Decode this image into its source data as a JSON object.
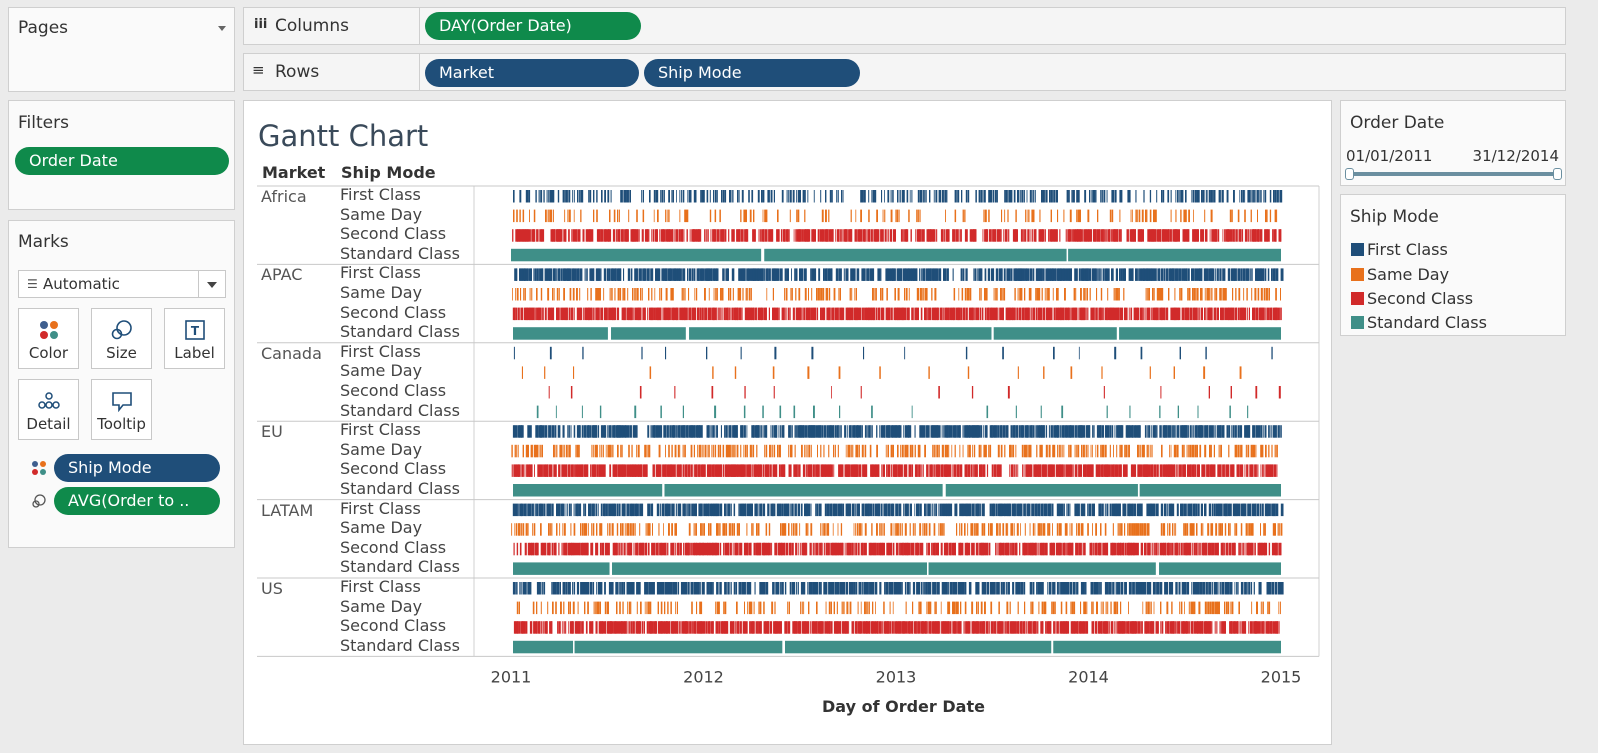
{
  "pages": {
    "title": "Pages"
  },
  "filters": {
    "title": "Filters",
    "pill": "Order Date"
  },
  "marks": {
    "title": "Marks",
    "type": "Automatic",
    "buttons": [
      "Color",
      "Size",
      "Label",
      "Detail",
      "Tooltip"
    ],
    "pills": [
      "Ship Mode",
      "AVG(Order to .."
    ]
  },
  "columns": {
    "label": "Columns",
    "pill": "DAY(Order Date)"
  },
  "rows": {
    "label": "Rows",
    "pills": [
      "Market",
      "Ship Mode"
    ]
  },
  "order_date_filter": {
    "title": "Order Date",
    "start": "01/01/2011",
    "end": "31/12/2014"
  },
  "ship_mode_legend": {
    "title": "Ship Mode",
    "items": [
      {
        "label": "First Class",
        "color": "#1f4e79"
      },
      {
        "label": "Same Day",
        "color": "#e8711c"
      },
      {
        "label": "Second Class",
        "color": "#d12a2a"
      },
      {
        "label": "Standard Class",
        "color": "#3f8f88"
      }
    ]
  },
  "chart_data": {
    "type": "gantt",
    "title": "Gantt Chart",
    "row_headers": [
      "Market",
      "Ship Mode"
    ],
    "xlabel": "Day of Order Date",
    "x_ticks": [
      "2011",
      "2012",
      "2013",
      "2014",
      "2015"
    ],
    "markets": [
      "Africa",
      "APAC",
      "Canada",
      "EU",
      "LATAM",
      "US"
    ],
    "ship_modes": [
      "First Class",
      "Same Day",
      "Second Class",
      "Standard Class"
    ],
    "colors": {
      "First Class": "#1f4e79",
      "Same Day": "#e8711c",
      "Second Class": "#d12a2a",
      "Standard Class": "#3f8f88"
    },
    "density": {
      "Africa": [
        0.55,
        0.25,
        0.75,
        0.97
      ],
      "APAC": [
        0.8,
        0.45,
        0.9,
        1.0
      ],
      "Canada": [
        0.08,
        0.05,
        0.06,
        0.15
      ],
      "EU": [
        0.8,
        0.55,
        0.85,
        1.0
      ],
      "LATAM": [
        0.8,
        0.55,
        0.85,
        1.0
      ],
      "US": [
        0.75,
        0.4,
        0.88,
        1.0
      ]
    }
  }
}
